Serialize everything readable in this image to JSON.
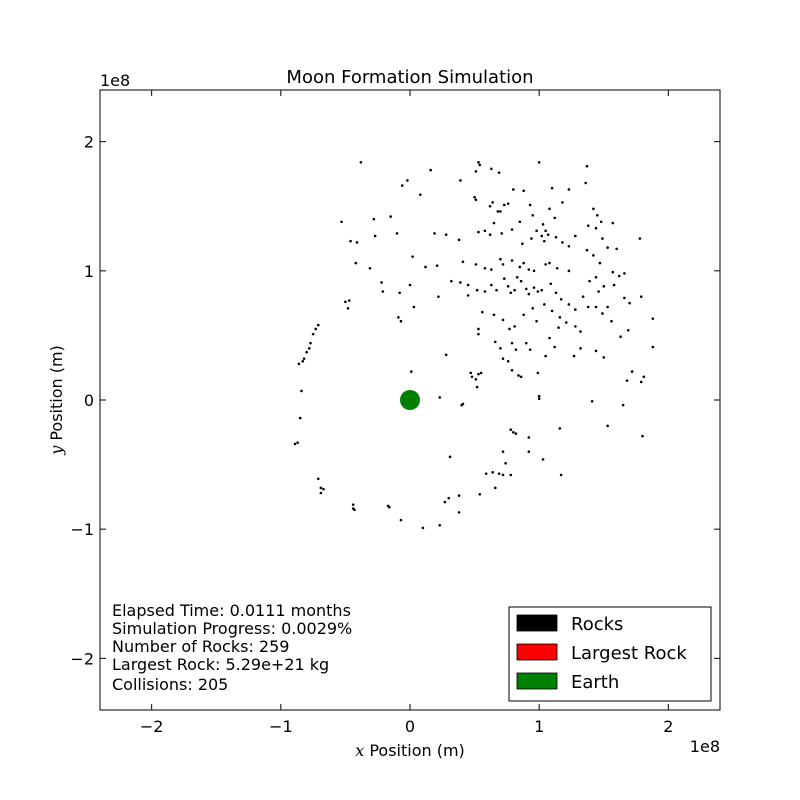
{
  "chart_data": {
    "type": "scatter",
    "title": "Moon Formation Simulation",
    "xlabel": {
      "var": "x",
      "text": " Position (m)"
    },
    "ylabel": {
      "var": "y",
      "text": " Position  (m)"
    },
    "x_scale_label": "1e8",
    "y_scale_label": "1e8",
    "xlim": [
      -2.4,
      2.4
    ],
    "ylim": [
      -2.4,
      2.4
    ],
    "x_ticks": [
      -2,
      -1,
      0,
      1,
      2
    ],
    "y_ticks": [
      -2,
      -1,
      0,
      1,
      2
    ],
    "x_tick_labels": [
      "−2",
      "−1",
      "0",
      "1",
      "2"
    ],
    "y_tick_labels": [
      "−2",
      "−1",
      "0",
      "1",
      "2"
    ],
    "grid": false,
    "legend": {
      "placement": "lower-right",
      "entries": [
        {
          "label": "Rocks",
          "color": "#000000"
        },
        {
          "label": "Largest Rock",
          "color": "#ff0000"
        },
        {
          "label": "Earth",
          "color": "#008000"
        }
      ]
    },
    "stats": [
      "Elapsed Time: 0.0111 months",
      "Simulation Progress: 0.0029%",
      "Number of Rocks: 259",
      "Largest Rock: 5.29e+21 kg",
      "Collisions: 205"
    ],
    "earth": {
      "x": 0,
      "y": 0,
      "color": "#008000"
    },
    "rock_color": "#000000",
    "rocks": [
      [
        -0.38,
        1.84
      ],
      [
        -0.06,
        1.66
      ],
      [
        -0.02,
        1.7
      ],
      [
        0.08,
        1.59
      ],
      [
        0.16,
        1.78
      ],
      [
        0.39,
        1.7
      ],
      [
        0.51,
        1.77
      ],
      [
        0.53,
        1.84
      ],
      [
        0.54,
        1.82
      ],
      [
        0.63,
        1.79
      ],
      [
        0.69,
        1.76
      ],
      [
        0.8,
        1.63
      ],
      [
        0.88,
        1.62
      ],
      [
        1.0,
        1.84
      ],
      [
        1.1,
        1.64
      ],
      [
        1.23,
        1.63
      ],
      [
        1.37,
        1.81
      ],
      [
        1.36,
        1.68
      ],
      [
        0.5,
        1.57
      ],
      [
        0.51,
        1.55
      ],
      [
        0.62,
        1.5
      ],
      [
        0.64,
        1.53
      ],
      [
        0.68,
        1.46
      ],
      [
        0.7,
        1.46
      ],
      [
        0.73,
        1.51
      ],
      [
        0.76,
        1.52
      ],
      [
        0.93,
        1.51
      ],
      [
        0.95,
        1.43
      ],
      [
        1.03,
        1.36
      ],
      [
        1.05,
        1.31
      ],
      [
        1.08,
        1.48
      ],
      [
        1.12,
        1.41
      ],
      [
        1.18,
        1.53
      ],
      [
        1.42,
        1.48
      ],
      [
        1.45,
        1.43
      ],
      [
        1.48,
        1.38
      ],
      [
        1.57,
        1.37
      ],
      [
        -0.53,
        1.38
      ],
      [
        -0.28,
        1.4
      ],
      [
        -0.15,
        1.42
      ],
      [
        -0.46,
        1.23
      ],
      [
        -0.41,
        1.22
      ],
      [
        -0.27,
        1.27
      ],
      [
        -0.1,
        1.29
      ],
      [
        0.19,
        1.29
      ],
      [
        0.28,
        1.28
      ],
      [
        0.38,
        1.24
      ],
      [
        0.53,
        1.3
      ],
      [
        0.58,
        1.31
      ],
      [
        0.62,
        1.28
      ],
      [
        0.65,
        1.37
      ],
      [
        0.71,
        1.29
      ],
      [
        0.79,
        1.32
      ],
      [
        0.85,
        1.38
      ],
      [
        0.87,
        1.21
      ],
      [
        0.94,
        1.25
      ],
      [
        0.98,
        1.31
      ],
      [
        1.02,
        1.27
      ],
      [
        1.04,
        1.23
      ],
      [
        1.07,
        1.28
      ],
      [
        1.13,
        1.26
      ],
      [
        1.18,
        1.22
      ],
      [
        1.23,
        1.19
      ],
      [
        1.28,
        1.27
      ],
      [
        1.38,
        1.35
      ],
      [
        1.44,
        1.33
      ],
      [
        1.49,
        1.25
      ],
      [
        1.53,
        1.18
      ],
      [
        1.78,
        1.25
      ],
      [
        1.6,
        1.17
      ],
      [
        -0.42,
        1.06
      ],
      [
        -0.31,
        1.02
      ],
      [
        0.02,
        1.11
      ],
      [
        0.12,
        1.03
      ],
      [
        0.21,
        1.04
      ],
      [
        0.41,
        1.07
      ],
      [
        0.51,
        1.05
      ],
      [
        0.58,
        1.02
      ],
      [
        0.63,
        1.01
      ],
      [
        0.7,
        1.09
      ],
      [
        0.72,
        1.05
      ],
      [
        0.79,
        1.08
      ],
      [
        0.85,
        1.03
      ],
      [
        0.88,
        1.06
      ],
      [
        0.92,
        1.01
      ],
      [
        0.96,
        1.0
      ],
      [
        1.05,
        1.05
      ],
      [
        1.08,
        1.06
      ],
      [
        1.14,
        1.02
      ],
      [
        1.23,
        1.0
      ],
      [
        1.37,
        1.16
      ],
      [
        1.42,
        1.12
      ],
      [
        1.47,
        1.06
      ],
      [
        1.57,
        0.99
      ],
      [
        1.66,
        0.98
      ],
      [
        -0.22,
        0.91
      ],
      [
        -0.21,
        0.84
      ],
      [
        -0.08,
        0.83
      ],
      [
        0.0,
        0.89
      ],
      [
        0.22,
        0.8
      ],
      [
        0.32,
        0.92
      ],
      [
        0.39,
        0.91
      ],
      [
        0.45,
        0.89
      ],
      [
        0.45,
        0.81
      ],
      [
        0.52,
        0.85
      ],
      [
        0.58,
        0.84
      ],
      [
        0.63,
        0.89
      ],
      [
        0.67,
        0.85
      ],
      [
        0.73,
        0.94
      ],
      [
        0.76,
        0.88
      ],
      [
        0.78,
        0.83
      ],
      [
        0.81,
        0.85
      ],
      [
        0.83,
        0.95
      ],
      [
        0.86,
        0.92
      ],
      [
        0.9,
        0.86
      ],
      [
        0.92,
        0.82
      ],
      [
        0.96,
        0.87
      ],
      [
        0.99,
        0.84
      ],
      [
        1.02,
        0.85
      ],
      [
        1.09,
        0.9
      ],
      [
        1.13,
        0.83
      ],
      [
        1.17,
        0.78
      ],
      [
        1.23,
        0.74
      ],
      [
        1.28,
        0.7
      ],
      [
        1.34,
        0.8
      ],
      [
        1.39,
        0.92
      ],
      [
        1.44,
        0.95
      ],
      [
        1.46,
        0.84
      ],
      [
        1.5,
        0.88
      ],
      [
        1.58,
        0.89
      ],
      [
        1.62,
        0.96
      ],
      [
        1.66,
        0.79
      ],
      [
        1.7,
        0.75
      ],
      [
        1.79,
        0.8
      ],
      [
        -0.5,
        0.76
      ],
      [
        -0.47,
        0.77
      ],
      [
        -0.48,
        0.71
      ],
      [
        -0.09,
        0.64
      ],
      [
        -0.07,
        0.61
      ],
      [
        0.03,
        0.72
      ],
      [
        0.56,
        0.68
      ],
      [
        0.65,
        0.66
      ],
      [
        0.72,
        0.62
      ],
      [
        0.77,
        0.55
      ],
      [
        0.81,
        0.57
      ],
      [
        0.88,
        0.66
      ],
      [
        0.95,
        0.71
      ],
      [
        0.98,
        0.61
      ],
      [
        1.04,
        0.74
      ],
      [
        1.1,
        0.69
      ],
      [
        1.16,
        0.64
      ],
      [
        1.21,
        0.6
      ],
      [
        1.28,
        0.57
      ],
      [
        1.32,
        0.53
      ],
      [
        1.38,
        0.72
      ],
      [
        1.44,
        0.72
      ],
      [
        1.49,
        0.67
      ],
      [
        1.53,
        0.72
      ],
      [
        1.56,
        0.61
      ],
      [
        1.63,
        0.49
      ],
      [
        1.69,
        0.54
      ],
      [
        1.88,
        0.63
      ],
      [
        -0.71,
        0.58
      ],
      [
        -0.73,
        0.55
      ],
      [
        -0.75,
        0.51
      ],
      [
        -0.77,
        0.44
      ],
      [
        -0.78,
        0.4
      ],
      [
        -0.8,
        0.37
      ],
      [
        -0.82,
        0.32
      ],
      [
        -0.83,
        0.3
      ],
      [
        -0.86,
        0.28
      ],
      [
        -0.84,
        0.07
      ],
      [
        0.01,
        0.22
      ],
      [
        0.28,
        0.35
      ],
      [
        0.47,
        0.21
      ],
      [
        0.48,
        0.18
      ],
      [
        0.51,
        0.16
      ],
      [
        0.53,
        0.2
      ],
      [
        0.55,
        0.21
      ],
      [
        0.52,
        0.1
      ],
      [
        0.53,
        0.55
      ],
      [
        0.53,
        0.51
      ],
      [
        0.66,
        0.45
      ],
      [
        0.7,
        0.4
      ],
      [
        0.72,
        0.32
      ],
      [
        0.76,
        0.3
      ],
      [
        0.79,
        0.44
      ],
      [
        0.82,
        0.39
      ],
      [
        0.84,
        0.19
      ],
      [
        0.86,
        0.18
      ],
      [
        0.9,
        0.44
      ],
      [
        0.93,
        0.39
      ],
      [
        0.99,
        0.21
      ],
      [
        1.05,
        0.34
      ],
      [
        1.08,
        0.48
      ],
      [
        1.12,
        0.41
      ],
      [
        1.15,
        0.56
      ],
      [
        1.27,
        0.34
      ],
      [
        1.32,
        0.4
      ],
      [
        1.44,
        0.38
      ],
      [
        1.5,
        0.33
      ],
      [
        1.68,
        0.15
      ],
      [
        1.72,
        0.22
      ],
      [
        1.79,
        0.14
      ],
      [
        1.88,
        0.41
      ],
      [
        1.81,
        0.18
      ],
      [
        1.0,
        0.03
      ],
      [
        1.0,
        0.01
      ],
      [
        0.79,
        0.23
      ],
      [
        -0.85,
        -0.14
      ],
      [
        0.4,
        -0.04
      ],
      [
        0.41,
        -0.03
      ],
      [
        0.23,
        0.02
      ],
      [
        1.41,
        -0.01
      ],
      [
        1.65,
        -0.04
      ],
      [
        1.53,
        -0.2
      ],
      [
        1.8,
        -0.28
      ],
      [
        0.78,
        -0.23
      ],
      [
        0.8,
        -0.25
      ],
      [
        0.82,
        -0.26
      ],
      [
        0.92,
        -0.29
      ],
      [
        0.92,
        -0.4
      ],
      [
        1.03,
        -0.46
      ],
      [
        1.17,
        -0.58
      ],
      [
        1.16,
        -0.22
      ],
      [
        -0.87,
        -0.33
      ],
      [
        -0.89,
        -0.34
      ],
      [
        -0.71,
        -0.61
      ],
      [
        -0.67,
        -0.69
      ],
      [
        -0.69,
        -0.72
      ],
      [
        -0.69,
        -0.68
      ],
      [
        -0.44,
        -0.81
      ],
      [
        -0.44,
        -0.84
      ],
      [
        -0.43,
        -0.85
      ],
      [
        -0.17,
        -0.82
      ],
      [
        -0.16,
        -0.83
      ],
      [
        -0.07,
        -0.93
      ],
      [
        0.1,
        -0.99
      ],
      [
        0.23,
        -0.97
      ],
      [
        0.27,
        -0.79
      ],
      [
        0.3,
        -0.76
      ],
      [
        0.38,
        -0.74
      ],
      [
        0.38,
        -0.87
      ],
      [
        0.31,
        -0.44
      ],
      [
        0.54,
        -0.73
      ],
      [
        0.59,
        -0.57
      ],
      [
        0.64,
        -0.56
      ],
      [
        0.66,
        -0.68
      ],
      [
        0.69,
        -0.57
      ],
      [
        0.72,
        -0.58
      ],
      [
        0.74,
        -0.49
      ],
      [
        0.72,
        -0.4
      ],
      [
        0.78,
        -0.58
      ]
    ]
  }
}
